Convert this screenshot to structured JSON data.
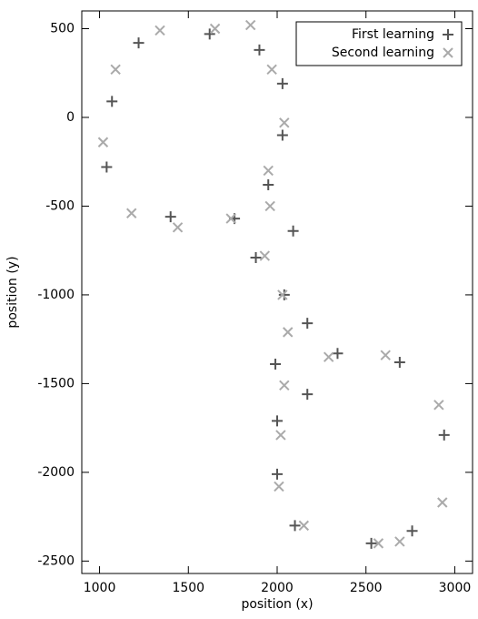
{
  "chart_data": {
    "type": "scatter",
    "xlabel": "position (x)",
    "ylabel": "position (y)",
    "xlim": [
      900,
      3100
    ],
    "ylim": [
      -2570,
      600
    ],
    "xticks": [
      1000,
      1500,
      2000,
      2500,
      3000
    ],
    "yticks": [
      500,
      0,
      -500,
      -1000,
      -1500,
      -2000,
      -2500
    ],
    "legend": "upper right",
    "series": [
      {
        "name": "First learning",
        "color": "#555555",
        "marker": "plus",
        "x": [
          1070,
          1220,
          1620,
          1900,
          2030,
          2030,
          1950,
          1040,
          1400,
          1760,
          2090,
          1880,
          2040,
          2170,
          2340,
          2690,
          1990,
          2170,
          2000,
          2940,
          2000,
          2100,
          2760,
          2530
        ],
        "values": [
          90,
          420,
          470,
          380,
          190,
          -100,
          -380,
          -280,
          -560,
          -570,
          -640,
          -790,
          -1000,
          -1160,
          -1330,
          -1380,
          -1390,
          -1560,
          -1710,
          -1790,
          -2010,
          -2300,
          -2330,
          -2400
        ]
      },
      {
        "name": "Second learning",
        "color": "#aaaaaa",
        "marker": "cross",
        "x": [
          1340,
          1650,
          1850,
          1090,
          1970,
          2040,
          1020,
          1950,
          1960,
          1180,
          1440,
          1740,
          1930,
          2030,
          2060,
          2290,
          2610,
          2040,
          2910,
          2020,
          2930,
          2010,
          2150,
          2570,
          2690
        ],
        "values": [
          490,
          500,
          520,
          270,
          270,
          -30,
          -140,
          -300,
          -500,
          -540,
          -620,
          -570,
          -780,
          -1000,
          -1210,
          -1350,
          -1340,
          -1510,
          -1620,
          -1790,
          -2170,
          -2080,
          -2300,
          -2400,
          -2390
        ]
      }
    ]
  }
}
